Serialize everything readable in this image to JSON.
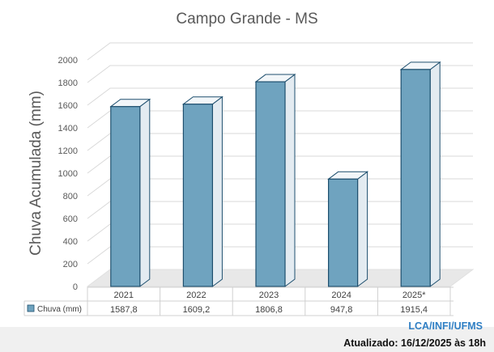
{
  "chart_data": {
    "type": "bar",
    "title": "Campo Grande - MS",
    "ylabel": "Chuva Acumulada (mm)",
    "xlabel": "",
    "categories": [
      "2021",
      "2022",
      "2023",
      "2024",
      "2025*"
    ],
    "series": [
      {
        "name": "Chuva (mm)",
        "values": [
          1587.8,
          1609.2,
          1806.8,
          947.8,
          1915.4
        ],
        "labels": [
          "1587,8",
          "1609,2",
          "1806,8",
          "947,8",
          "1915,4"
        ]
      }
    ],
    "ylim": [
      0,
      2000
    ],
    "yticks": [
      0,
      200,
      400,
      600,
      800,
      1000,
      1200,
      1400,
      1600,
      1800,
      2000
    ],
    "grid": true,
    "legend": "data table below chart",
    "colors": {
      "bar_front": "#6fa3bf",
      "bar_edge": "#1e4f6e",
      "glass": "#e3ebf1",
      "grid": "#d9d9d9"
    }
  },
  "footer": {
    "credit": "LCA/INFI/UFMS",
    "updated": "Atualizado: 16/12/2025 às 18h"
  }
}
